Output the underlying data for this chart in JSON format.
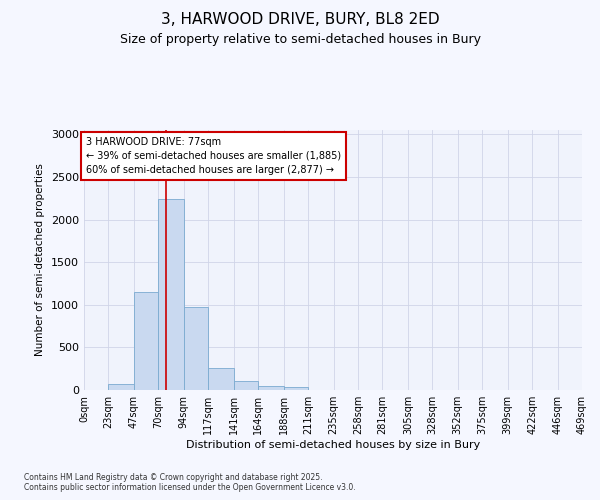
{
  "title_line1": "3, HARWOOD DRIVE, BURY, BL8 2ED",
  "title_line2": "Size of property relative to semi-detached houses in Bury",
  "xlabel": "Distribution of semi-detached houses by size in Bury",
  "ylabel": "Number of semi-detached properties",
  "bins": [
    0,
    23,
    47,
    70,
    94,
    117,
    141,
    164,
    188,
    211,
    235,
    258,
    281,
    305,
    328,
    352,
    375,
    399,
    422,
    446,
    469
  ],
  "bar_heights": [
    0,
    70,
    1150,
    2240,
    970,
    260,
    110,
    50,
    30,
    5,
    0,
    0,
    0,
    0,
    0,
    0,
    0,
    0,
    0,
    0
  ],
  "bar_color": "#c9d9f0",
  "bar_edgecolor": "#7aaad0",
  "property_size": 77,
  "property_label": "3 HARWOOD DRIVE: 77sqm",
  "smaller_pct": "39%",
  "smaller_n": "1,885",
  "larger_pct": "60%",
  "larger_n": "2,877",
  "vline_color": "#cc0000",
  "annotation_box_edgecolor": "#cc0000",
  "ylim": [
    0,
    3050
  ],
  "yticks": [
    0,
    500,
    1000,
    1500,
    2000,
    2500,
    3000
  ],
  "footnote1": "Contains HM Land Registry data © Crown copyright and database right 2025.",
  "footnote2": "Contains public sector information licensed under the Open Government Licence v3.0.",
  "bg_color": "#f5f7ff",
  "plot_bg_color": "#f0f3fc",
  "grid_color": "#d0d5e8"
}
